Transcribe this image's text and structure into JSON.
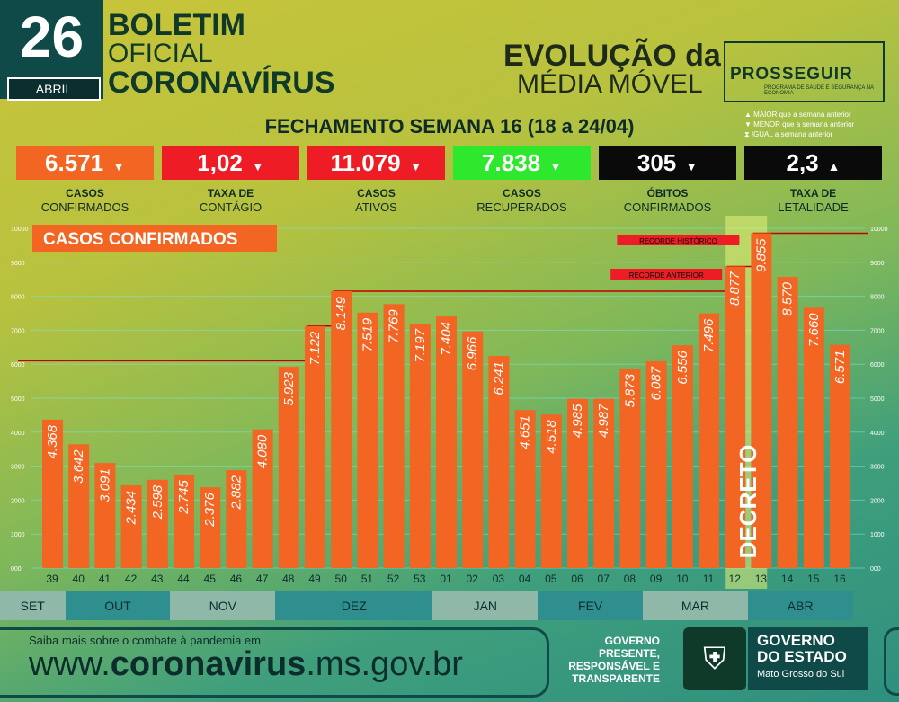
{
  "header": {
    "day": "26",
    "month": "ABRIL",
    "title_line1": "BOLETIM",
    "title_line2": "OFICIAL",
    "title_line3": "CORONAVÍRUS",
    "evolution_line1": "EVOLUÇÃO da",
    "evolution_line2": "MÉDIA MÓVEL",
    "program_name": "PROSSEGUIR",
    "program_sub": "PROGRAMA DE SAÚDE E SEGURANÇA NA ECONOMIA"
  },
  "week_title": "FECHAMENTO SEMANA 16 (18 a 24/04)",
  "legend": [
    "▲ MAIOR que a semana anterior",
    "▼ MENOR que a semana anterior",
    "⧗ IGUAL a semana anterior"
  ],
  "kpis": [
    {
      "value": "6.571",
      "arrow": "▼",
      "label1": "CASOS",
      "label2": "CONFIRMADOS",
      "color": "#f26522"
    },
    {
      "value": "1,02",
      "arrow": "▼",
      "label1": "TAXA DE",
      "label2": "CONTÁGIO",
      "color": "#ee1c25"
    },
    {
      "value": "11.079",
      "arrow": "▼",
      "label1": "CASOS",
      "label2": "ATIVOS",
      "color": "#ee1c25"
    },
    {
      "value": "7.838",
      "arrow": "▼",
      "label1": "CASOS",
      "label2": "RECUPERADOS",
      "color": "#2ee82e"
    },
    {
      "value": "305",
      "arrow": "▼",
      "label1": "ÓBITOS",
      "label2": "CONFIRMADOS",
      "color": "#0a0a0a"
    },
    {
      "value": "2,3",
      "arrow": "▲",
      "label1": "TAXA DE",
      "label2": "LETALIDADE",
      "color": "#0a0a0a"
    }
  ],
  "chart_data": {
    "type": "bar",
    "title": "CASOS CONFIRMADOS",
    "categories": [
      "39",
      "40",
      "41",
      "42",
      "43",
      "44",
      "45",
      "46",
      "47",
      "48",
      "49",
      "50",
      "51",
      "52",
      "53",
      "01",
      "02",
      "03",
      "04",
      "05",
      "06",
      "07",
      "08",
      "09",
      "10",
      "11",
      "12",
      "13",
      "14",
      "15",
      "16"
    ],
    "values": [
      4368,
      3642,
      3091,
      2434,
      2598,
      2745,
      2376,
      2882,
      4080,
      5923,
      7122,
      8149,
      7519,
      7769,
      7197,
      7404,
      6966,
      6241,
      4651,
      4518,
      4985,
      4987,
      5873,
      6087,
      6556,
      7496,
      8877,
      9855,
      8570,
      7660,
      6571
    ],
    "value_labels": [
      "4.368",
      "3.642",
      "3.091",
      "2.434",
      "2.598",
      "2.745",
      "2.376",
      "2.882",
      "4.080",
      "5.923",
      "7.122",
      "8.149",
      "7.519",
      "7.769",
      "7.197",
      "7.404",
      "6.966",
      "6.241",
      "4.651",
      "4.518",
      "4.985",
      "4.987",
      "5.873",
      "6.087",
      "6.556",
      "7.496",
      "8.877",
      "9.855",
      "8.570",
      "7.660",
      "6.571"
    ],
    "y_ticks": [
      "000",
      "1000",
      "2000",
      "3000",
      "4000",
      "5000",
      "6000",
      "7000",
      "8000",
      "9000",
      "10000"
    ],
    "ylim": [
      0,
      10000
    ],
    "bar_color": "#f26522",
    "annotations": {
      "record_historic": "RECORDE HISTÓRICO",
      "record_previous": "RECORDE ANTERIOR",
      "decree": "DECRETO",
      "record_line_values": [
        6100,
        7122,
        8149,
        8877,
        9855
      ]
    },
    "months": [
      {
        "label": "SET",
        "from": 0,
        "to": 0
      },
      {
        "label": "OUT",
        "from": 1,
        "to": 4
      },
      {
        "label": "NOV",
        "from": 5,
        "to": 8
      },
      {
        "label": "DEZ",
        "from": 9,
        "to": 14
      },
      {
        "label": "JAN",
        "from": 15,
        "to": 18
      },
      {
        "label": "FEV",
        "from": 19,
        "to": 22
      },
      {
        "label": "MAR",
        "from": 23,
        "to": 26
      },
      {
        "label": "ABR",
        "from": 27,
        "to": 30
      }
    ]
  },
  "footer": {
    "small_text": "Saiba mais sobre o combate à pandemia em",
    "url_prefix": "www.",
    "url_bold": "coronavirus",
    "url_suffix": ".ms.gov.br",
    "gov_line1": "GOVERNO",
    "gov_line2": "PRESENTE,",
    "gov_line3": "RESPONSÁVEL E",
    "gov_line4": "TRANSPARENTE",
    "state_line1": "GOVERNO",
    "state_line2": "DO ESTADO",
    "state_line3": "Mato Grosso do Sul"
  }
}
